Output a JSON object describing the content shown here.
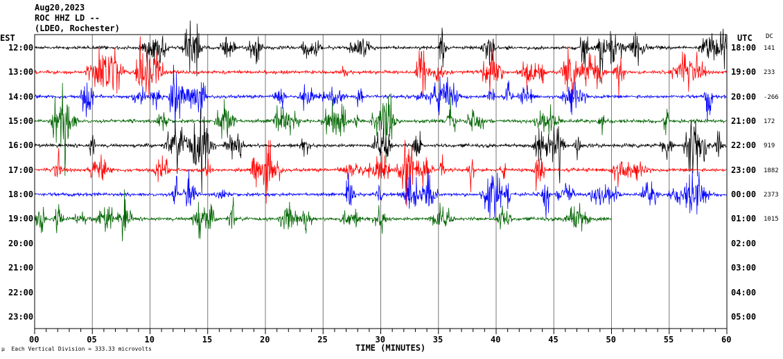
{
  "header": {
    "date": "Aug20,2023",
    "station": "ROC HHZ LD --",
    "network": "(LDEO, Rochester)"
  },
  "chart_data": {
    "type": "line",
    "title": "Aug20,2023 ROC HHZ LD -- (LDEO, Rochester)",
    "xlabel": "TIME (MINUTES)",
    "left_axis_title": "EST",
    "right_axis_title": "UTC",
    "dc_title": "DC",
    "xlim": [
      0,
      60
    ],
    "x_ticks": [
      "00",
      "05",
      "10",
      "15",
      "20",
      "25",
      "30",
      "35",
      "40",
      "45",
      "50",
      "55",
      "60"
    ],
    "est_labels": [
      "12:00",
      "13:00",
      "14:00",
      "15:00",
      "16:00",
      "17:00",
      "18:00",
      "19:00",
      "20:00",
      "21:00",
      "22:00",
      "23:00"
    ],
    "utc_labels": [
      "18:00",
      "19:00",
      "20:00",
      "21:00",
      "22:00",
      "23:00",
      "00:00",
      "01:00",
      "02:00",
      "03:00",
      "04:00",
      "05:00"
    ],
    "dc_offsets": [
      "141",
      "233",
      "-266",
      "172",
      "919",
      "1882",
      "2373",
      "1015"
    ],
    "trace_colors": [
      "#000000",
      "#ff0000",
      "#0000ff",
      "#006400"
    ],
    "traces_recorded": 8,
    "last_trace_end_minute": 50,
    "scale_note": "Each Vertical Division =  333.33 microvolts"
  }
}
